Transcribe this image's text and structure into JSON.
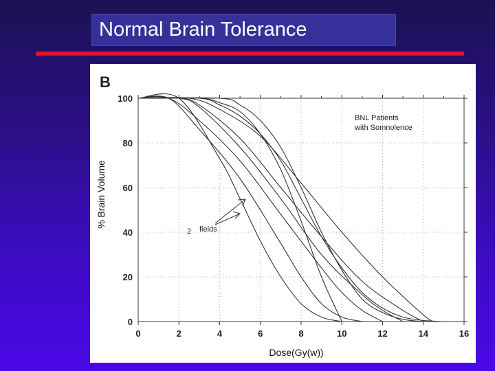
{
  "slide": {
    "title": "Normal Brain Tolerance",
    "colors": {
      "background": "#2a0f86",
      "title_box": "#36309a",
      "rule": "#e8102a",
      "panel": "#ffffff",
      "curve": "#333333"
    }
  },
  "chart_data": {
    "type": "line",
    "panel_letter": "B",
    "xlabel": "Dose(Gy(w))",
    "ylabel": "% Brain Volume",
    "xlim": [
      0,
      16
    ],
    "ylim": [
      0,
      100
    ],
    "xticks": [
      0,
      2,
      4,
      6,
      8,
      10,
      12,
      14,
      16
    ],
    "yticks": [
      0,
      20,
      40,
      60,
      80,
      100
    ],
    "grid": "dotted",
    "annotations": [
      {
        "text": "BNL Patients\nwith Somnolence"
      },
      {
        "text": "2",
        "note_text": "fields"
      }
    ],
    "series": [
      {
        "x": [
          0,
          2,
          4,
          5,
          6,
          7,
          8,
          9,
          10
        ],
        "y": [
          100,
          100,
          73,
          55,
          36,
          20,
          8,
          2,
          0
        ]
      },
      {
        "x": [
          0,
          1.5,
          3,
          5,
          7,
          8,
          9,
          10,
          11
        ],
        "y": [
          100,
          100,
          86,
          64,
          35,
          20,
          8,
          2,
          0
        ]
      },
      {
        "x": [
          0,
          1.5,
          3,
          5,
          7,
          9,
          10,
          11,
          12
        ],
        "y": [
          100,
          100,
          90,
          72,
          48,
          24,
          13,
          5,
          0
        ]
      },
      {
        "x": [
          0,
          2,
          3,
          5,
          7,
          9,
          11,
          12,
          13
        ],
        "y": [
          100,
          100,
          96,
          78,
          55,
          30,
          12,
          5,
          0
        ]
      },
      {
        "x": [
          0,
          2,
          3,
          5,
          7,
          9,
          11,
          13,
          14
        ],
        "y": [
          100,
          100,
          97,
          82,
          60,
          38,
          18,
          5,
          0
        ]
      },
      {
        "x": [
          0,
          2.5,
          4,
          6,
          8,
          10,
          12,
          14,
          14.5
        ],
        "y": [
          100,
          100,
          95,
          83,
          62,
          40,
          20,
          3,
          0
        ]
      },
      {
        "x": [
          0,
          3,
          4,
          5,
          6,
          7,
          8,
          9,
          10,
          11,
          12,
          13,
          14,
          15
        ],
        "y": [
          100,
          100,
          97,
          92,
          84,
          72,
          55,
          38,
          24,
          13,
          6,
          2,
          0.5,
          0
        ]
      },
      {
        "x": [
          0,
          3,
          4,
          5,
          6,
          7,
          8,
          9,
          10
        ],
        "y": [
          100,
          100,
          98,
          94,
          84,
          68,
          45,
          20,
          0
        ]
      },
      {
        "x": [
          0,
          4,
          5,
          6,
          7,
          8,
          9,
          10,
          11,
          12,
          13,
          14
        ],
        "y": [
          100,
          100,
          97,
          90,
          78,
          60,
          40,
          23,
          10,
          4,
          1,
          0
        ]
      }
    ]
  }
}
